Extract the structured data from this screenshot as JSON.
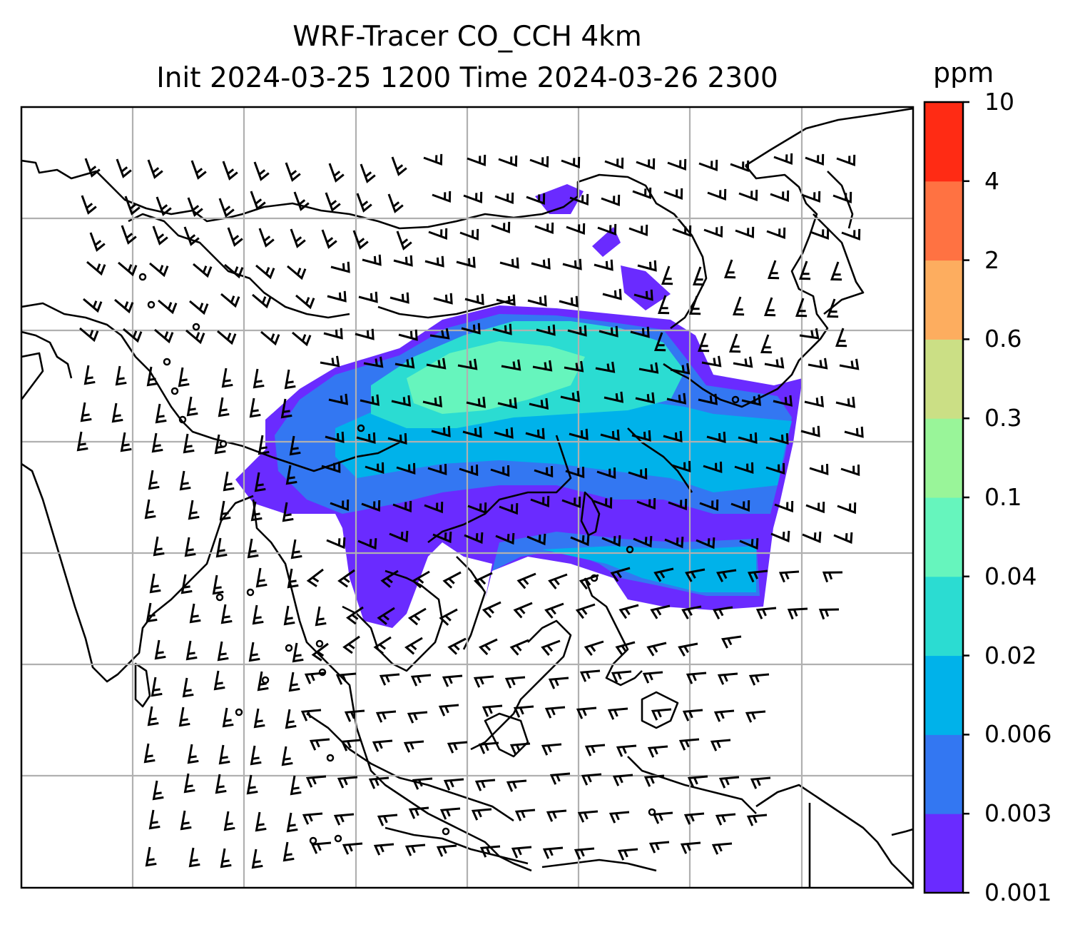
{
  "title": {
    "line1": "WRF-Tracer CO_CCH 4km",
    "line2": "Init 2024-03-25 1200 Time 2024-03-26 2300"
  },
  "colorbar": {
    "unit": "ppm",
    "levels": [
      "0.001",
      "0.003",
      "0.006",
      "0.02",
      "0.04",
      "0.1",
      "0.3",
      "0.6",
      "2",
      "4",
      "10"
    ],
    "colors": [
      "#6a2bff",
      "#3377f2",
      "#00b2ea",
      "#2bdcd2",
      "#66f5bd",
      "#99f599",
      "#cbdf85",
      "#fdad5f",
      "#ff7242",
      "#ff2b14"
    ]
  },
  "map": {
    "gridlines": true,
    "wind_barbs": true,
    "tracer_plume_colors": {
      "lowest": "#6a2bff",
      "low": "#3377f2",
      "mid": "#00b2ea",
      "mid_high": "#2bdcd2",
      "high": "#66f5bd"
    }
  }
}
